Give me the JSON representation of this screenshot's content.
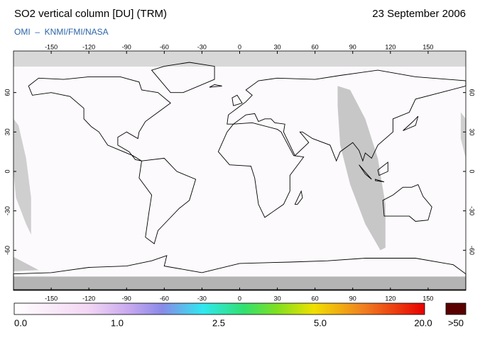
{
  "header": {
    "title": "SO2 vertical column [DU] (TRM)",
    "date": "23 September 2006",
    "subtitle": "OMI  –  KNMI/FMI/NASA"
  },
  "map": {
    "lon_ticks": [
      -150,
      -120,
      -90,
      -60,
      -30,
      0,
      30,
      60,
      90,
      120,
      150
    ],
    "lat_ticks": [
      60,
      30,
      0,
      -30,
      -60
    ]
  },
  "colorbar": {
    "labels": [
      "0.0",
      "1.0",
      "2.5",
      "5.0",
      "20.0",
      ">50"
    ]
  }
}
